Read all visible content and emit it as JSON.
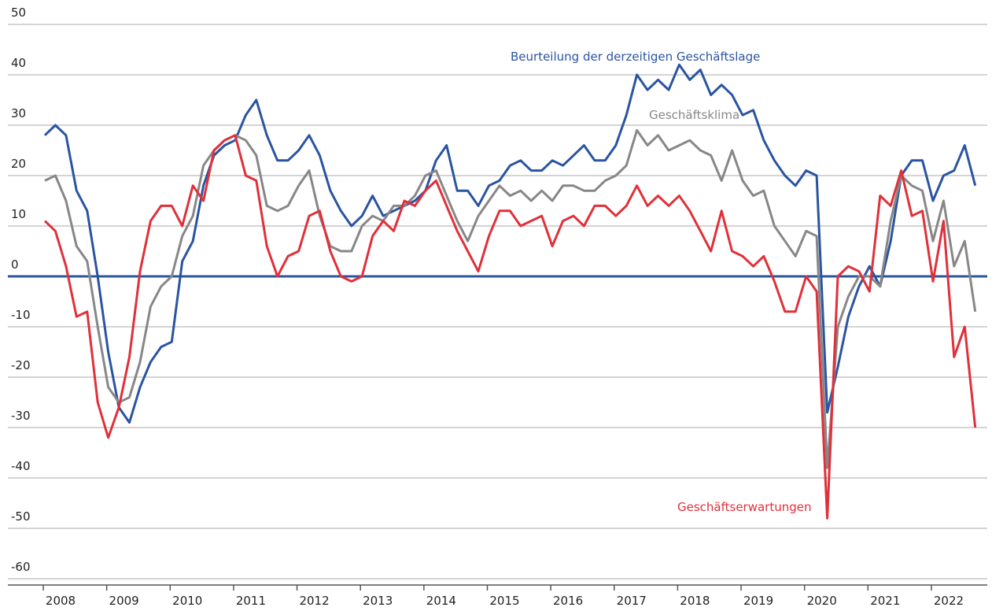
{
  "chart_data": {
    "type": "line",
    "categories": [
      "2008",
      null,
      null,
      null,
      null,
      null,
      "2009",
      null,
      null,
      null,
      null,
      null,
      "2010",
      null,
      null,
      null,
      null,
      null,
      "2011",
      null,
      null,
      null,
      null,
      null,
      "2012",
      null,
      null,
      null,
      null,
      null,
      "2013",
      null,
      null,
      null,
      null,
      null,
      "2014",
      null,
      null,
      null,
      null,
      null,
      "2015",
      null,
      null,
      null,
      null,
      null,
      "2016",
      null,
      null,
      null,
      null,
      null,
      "2017",
      null,
      null,
      null,
      null,
      null,
      "2018",
      null,
      null,
      null,
      null,
      null,
      "2019",
      null,
      null,
      null,
      null,
      null,
      "2020",
      null,
      null,
      null,
      null,
      null,
      "2021",
      null,
      null,
      null,
      null,
      null,
      "2022",
      null,
      null,
      null,
      null
    ],
    "series": [
      {
        "name": "Beurteilung der derzeitigen Geschäftslage",
        "color": "#2a54a0",
        "values": [
          28,
          30,
          28,
          17,
          13,
          0,
          -15,
          -26,
          -29,
          -22,
          -17,
          -14,
          -13,
          3,
          7,
          18,
          24,
          26,
          27,
          32,
          35,
          28,
          23,
          23,
          25,
          28,
          24,
          17,
          13,
          10,
          12,
          16,
          12,
          13,
          14,
          15,
          17,
          23,
          26,
          17,
          17,
          14,
          18,
          19,
          22,
          23,
          21,
          21,
          23,
          22,
          24,
          26,
          23,
          23,
          26,
          32,
          40,
          37,
          39,
          37,
          42,
          39,
          41,
          36,
          38,
          36,
          32,
          33,
          27,
          23,
          20,
          18,
          21,
          20,
          -27,
          -18,
          -8,
          -2,
          2,
          -2,
          7,
          20,
          23,
          23,
          15,
          20,
          21,
          26,
          18
        ]
      },
      {
        "name": "Geschäftsklima",
        "color": "#878787",
        "values": [
          19,
          20,
          15,
          6,
          3,
          -10,
          -22,
          -25,
          -24,
          -17,
          -6,
          -2,
          0,
          8,
          12,
          22,
          25,
          27,
          28,
          27,
          24,
          14,
          13,
          14,
          18,
          21,
          12,
          6,
          5,
          5,
          10,
          12,
          11,
          14,
          14,
          16,
          20,
          21,
          16,
          11,
          7,
          12,
          15,
          18,
          16,
          17,
          15,
          17,
          15,
          18,
          18,
          17,
          17,
          19,
          20,
          22,
          29,
          26,
          28,
          25,
          26,
          27,
          25,
          24,
          19,
          25,
          19,
          16,
          17,
          10,
          7,
          4,
          9,
          8,
          -38,
          -10,
          -4,
          0,
          0,
          -2,
          11,
          20,
          18,
          17,
          7,
          15,
          2,
          7,
          -7
        ]
      },
      {
        "name": "Geschäftserwartungen",
        "color": "#e0303a",
        "values": [
          11,
          9,
          2,
          -8,
          -7,
          -25,
          -32,
          -26,
          -16,
          1,
          11,
          14,
          14,
          10,
          18,
          15,
          25,
          27,
          28,
          20,
          19,
          6,
          0,
          4,
          5,
          12,
          13,
          5,
          0,
          -1,
          0,
          8,
          11,
          9,
          15,
          14,
          17,
          19,
          14,
          9,
          5,
          1,
          8,
          13,
          13,
          10,
          11,
          12,
          6,
          11,
          12,
          10,
          14,
          14,
          12,
          14,
          18,
          14,
          16,
          14,
          16,
          13,
          9,
          5,
          13,
          5,
          4,
          2,
          4,
          -1,
          -7,
          -7,
          0,
          -3,
          -48,
          0,
          2,
          1,
          -3,
          16,
          14,
          21,
          12,
          13,
          -1,
          11,
          -16,
          -10,
          -30
        ]
      }
    ],
    "ylim": [
      -65,
      50
    ],
    "yticks": [
      -60,
      -50,
      -40,
      -30,
      -20,
      -10,
      0,
      10,
      20,
      30,
      40,
      50
    ],
    "grid": true
  }
}
